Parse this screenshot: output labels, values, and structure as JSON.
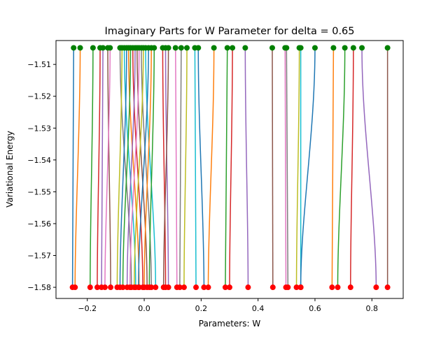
{
  "chart_data": {
    "type": "line",
    "title": "Imaginary Parts for W Parameter for delta = 0.65",
    "xlabel": "Parameters: W",
    "ylabel": "Variational Energy",
    "xlim": [
      -0.31,
      0.91
    ],
    "ylim": [
      -1.5835,
      -1.5025
    ],
    "xticks": [
      -0.2,
      0.0,
      0.2,
      0.4,
      0.6,
      0.8
    ],
    "xtick_labels": [
      "−0.2",
      "0.0",
      "0.2",
      "0.4",
      "0.6",
      "0.8"
    ],
    "yticks": [
      -1.51,
      -1.52,
      -1.53,
      -1.54,
      -1.55,
      -1.56,
      -1.57,
      -1.58
    ],
    "ytick_labels": [
      "−1.51",
      "−1.52",
      "−1.53",
      "−1.54",
      "−1.55",
      "−1.56",
      "−1.57",
      "−1.58"
    ],
    "grid": false,
    "legend": "none",
    "y_start": -1.5048,
    "y_end": -1.58,
    "start_marker_color": "#008000",
    "end_marker_color": "#ff0000",
    "palette": [
      "#1f77b4",
      "#ff7f0e",
      "#2ca02c",
      "#d62728",
      "#9467bd",
      "#8c564b",
      "#e377c2",
      "#7f7f7f",
      "#bcbd22",
      "#17becf"
    ],
    "series": [
      {
        "x_start": -0.248,
        "x_end": -0.252
      },
      {
        "x_start": -0.225,
        "x_end": -0.243
      },
      {
        "x_start": -0.18,
        "x_end": -0.19
      },
      {
        "x_start": -0.155,
        "x_end": -0.165
      },
      {
        "x_start": -0.145,
        "x_end": -0.15
      },
      {
        "x_start": -0.128,
        "x_end": -0.118
      },
      {
        "x_start": -0.12,
        "x_end": -0.138
      },
      {
        "x_start": -0.085,
        "x_end": -0.045
      },
      {
        "x_start": -0.078,
        "x_end": -0.095
      },
      {
        "x_start": -0.07,
        "x_end": -0.03
      },
      {
        "x_start": -0.062,
        "x_end": -0.085
      },
      {
        "x_start": -0.055,
        "x_end": -0.018
      },
      {
        "x_start": -0.048,
        "x_end": -0.075
      },
      {
        "x_start": -0.04,
        "x_end": -0.005
      },
      {
        "x_start": -0.032,
        "x_end": -0.06
      },
      {
        "x_start": -0.025,
        "x_end": 0.01
      },
      {
        "x_start": -0.018,
        "x_end": -0.05
      },
      {
        "x_start": -0.01,
        "x_end": 0.025
      },
      {
        "x_start": -0.003,
        "x_end": -0.035
      },
      {
        "x_start": 0.005,
        "x_end": 0.04
      },
      {
        "x_start": 0.015,
        "x_end": -0.02
      },
      {
        "x_start": 0.025,
        "x_end": 0.0
      },
      {
        "x_start": 0.035,
        "x_end": 0.018
      },
      {
        "x_start": 0.065,
        "x_end": 0.075
      },
      {
        "x_start": 0.075,
        "x_end": 0.085
      },
      {
        "x_start": 0.085,
        "x_end": 0.068
      },
      {
        "x_start": 0.11,
        "x_end": 0.115
      },
      {
        "x_start": 0.13,
        "x_end": 0.125
      },
      {
        "x_start": 0.15,
        "x_end": 0.14
      },
      {
        "x_start": 0.178,
        "x_end": 0.182
      },
      {
        "x_start": 0.19,
        "x_end": 0.21
      },
      {
        "x_start": 0.245,
        "x_end": 0.225
      },
      {
        "x_start": 0.292,
        "x_end": 0.285
      },
      {
        "x_start": 0.31,
        "x_end": 0.3
      },
      {
        "x_start": 0.355,
        "x_end": 0.365
      },
      {
        "x_start": 0.45,
        "x_end": 0.452
      },
      {
        "x_start": 0.495,
        "x_end": 0.498
      },
      {
        "x_start": 0.5,
        "x_end": 0.505
      },
      {
        "x_start": 0.545,
        "x_end": 0.535
      },
      {
        "x_start": 0.55,
        "x_end": 0.55
      },
      {
        "x_start": 0.6,
        "x_end": 0.55
      },
      {
        "x_start": 0.665,
        "x_end": 0.66
      },
      {
        "x_start": 0.705,
        "x_end": 0.68
      },
      {
        "x_start": 0.735,
        "x_end": 0.725
      },
      {
        "x_start": 0.765,
        "x_end": 0.815
      },
      {
        "x_start": 0.855,
        "x_end": 0.855
      }
    ]
  }
}
